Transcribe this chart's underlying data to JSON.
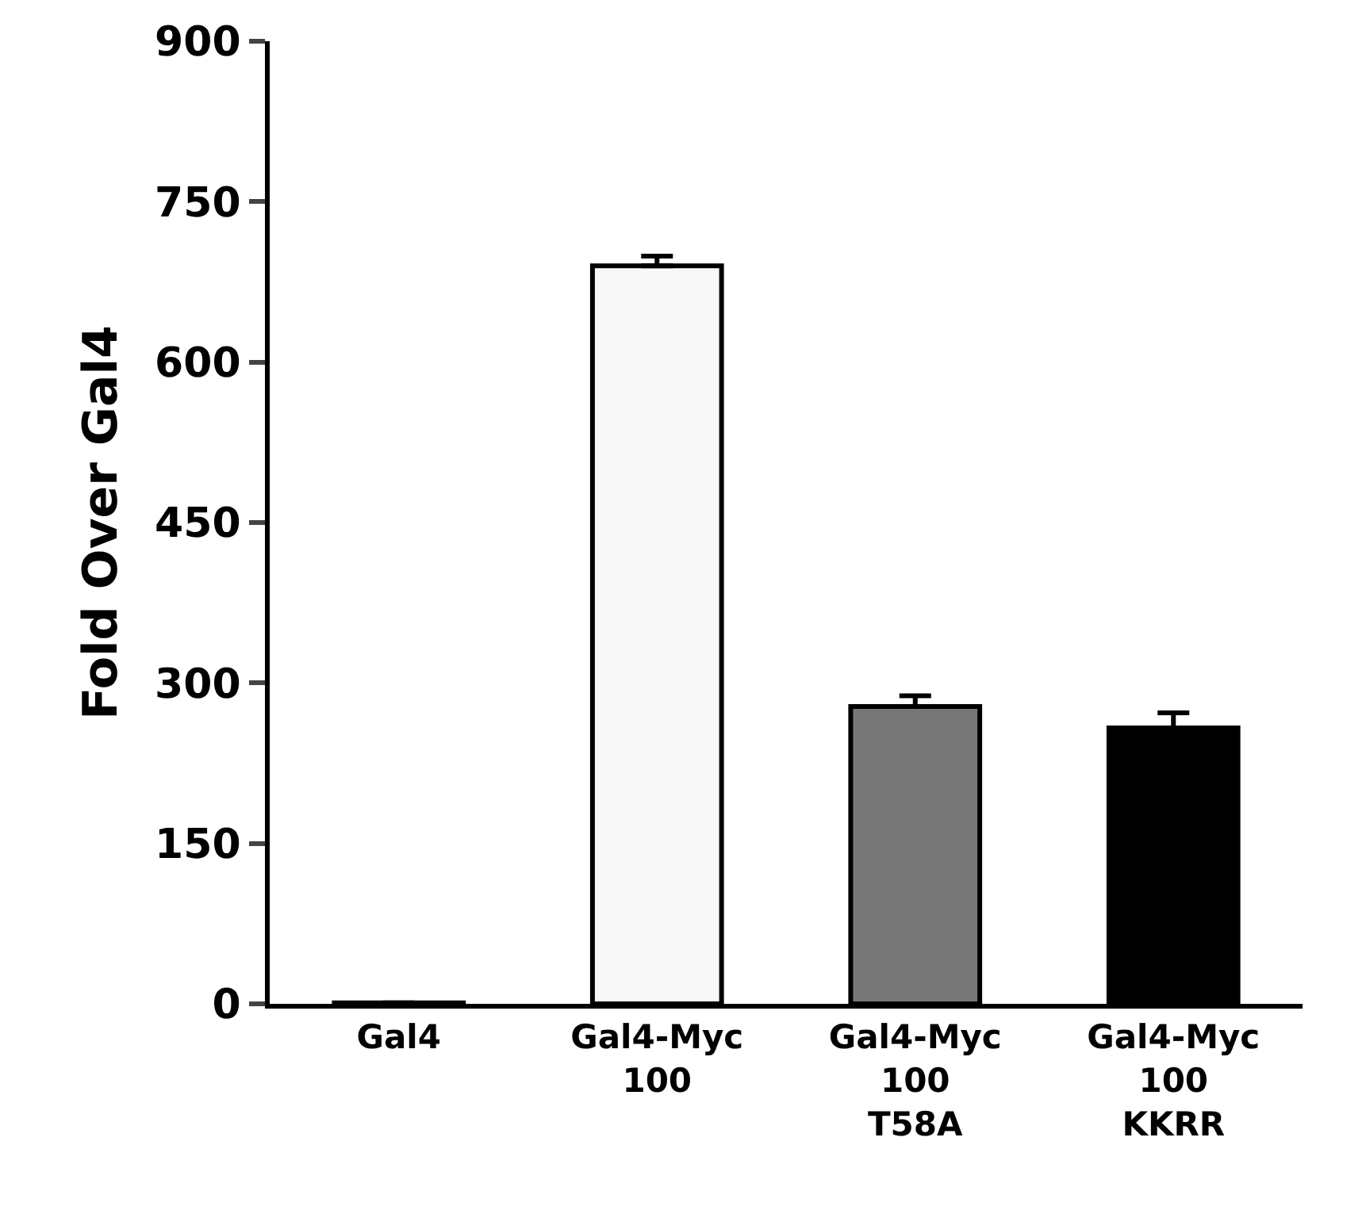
{
  "chart_data": {
    "type": "bar",
    "ylabel": "Fold Over Gal4",
    "categories": [
      "Gal4",
      "Gal4-Myc\n100",
      "Gal4-Myc\n100\nT58A",
      "Gal4-Myc\n100\nKKRR"
    ],
    "values": [
      1,
      690,
      278,
      258
    ],
    "errors": [
      null,
      9,
      10,
      14
    ],
    "colors": [
      "#ffffff",
      "#f8f8f8",
      "#777777",
      "#000000"
    ],
    "ylim": [
      0,
      900
    ],
    "yticks": [
      0,
      150,
      300,
      450,
      600,
      750,
      900
    ]
  }
}
